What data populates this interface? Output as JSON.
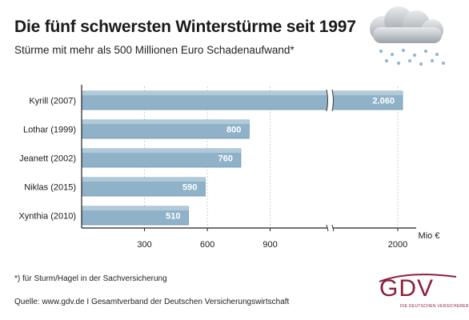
{
  "header": {
    "title": "Die fünf schwersten Winterstürme seit 1997",
    "subtitle": "Stürme mit mehr als 500 Millionen Euro Schadenaufwand*"
  },
  "footer": {
    "footnote": "*) für Sturm/Hagel in der Sachversicherung",
    "source": "Quelle: www.gdv.de I Gesamtverband der Deutschen Versicherungswirtschaft"
  },
  "logo": {
    "name": "GDV",
    "tagline": "DIE DEUTSCHEN VERSICHERER"
  },
  "colors": {
    "bar": "#8fb2c9",
    "bar_dark": "#6f97b2",
    "axis": "#222222",
    "grid": "#cfcfcf",
    "logo": "#8d1f3c"
  },
  "icons": [
    "storm-cloud-icon"
  ],
  "chart_data": {
    "type": "bar",
    "orientation": "horizontal",
    "categories": [
      "Kyrill (2007)",
      "Lothar (1999)",
      "Jeanett (2002)",
      "Niklas (2015)",
      "Xynthia (2010)"
    ],
    "values": [
      2060,
      800,
      760,
      590,
      510
    ],
    "value_labels": [
      "2.060",
      "800",
      "760",
      "590",
      "510"
    ],
    "x_ticks": [
      "300",
      "600",
      "900",
      "2000"
    ],
    "x_unit": "Mio €",
    "axis_break": true,
    "grid": true
  }
}
